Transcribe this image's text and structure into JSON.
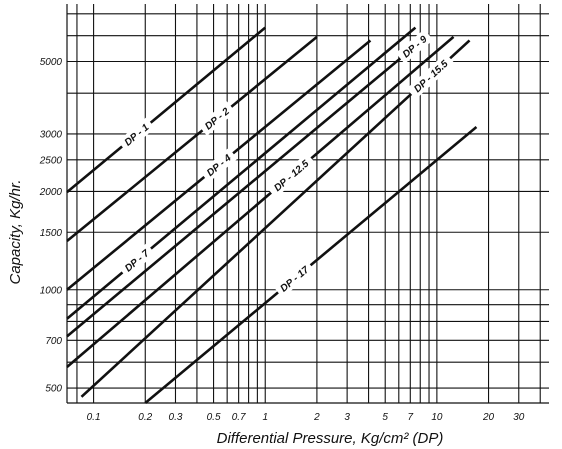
{
  "chart_data": {
    "type": "line",
    "xlabel": "Differential Pressure, Kg/cm² (DP)",
    "ylabel": "Capacity, Kg/hr.",
    "x_scale": "log",
    "y_scale": "log",
    "xlim": [
      0.07,
      45
    ],
    "ylim": [
      450,
      7500
    ],
    "x_ticks": [
      {
        "value": 0.1,
        "label": "0.1"
      },
      {
        "value": 0.2,
        "label": "0.2"
      },
      {
        "value": 0.3,
        "label": "0.3"
      },
      {
        "value": 0.5,
        "label": "0.5"
      },
      {
        "value": 0.7,
        "label": "0.7"
      },
      {
        "value": 1,
        "label": "1"
      },
      {
        "value": 2,
        "label": "2"
      },
      {
        "value": 3,
        "label": "3"
      },
      {
        "value": 5,
        "label": "5"
      },
      {
        "value": 7,
        "label": "7"
      },
      {
        "value": 10,
        "label": "10"
      },
      {
        "value": 20,
        "label": "20"
      },
      {
        "value": 30,
        "label": "30"
      }
    ],
    "y_ticks": [
      {
        "value": 500,
        "label": "500"
      },
      {
        "value": 700,
        "label": "700"
      },
      {
        "value": 1000,
        "label": "1000"
      },
      {
        "value": 1500,
        "label": "1500"
      },
      {
        "value": 2000,
        "label": "2000"
      },
      {
        "value": 2500,
        "label": "2500"
      },
      {
        "value": 3000,
        "label": "3000"
      },
      {
        "value": 5000,
        "label": "5000"
      }
    ],
    "x_gridlines": [
      0.08,
      0.1,
      0.2,
      0.3,
      0.4,
      0.5,
      0.6,
      0.7,
      0.8,
      0.9,
      1,
      2,
      3,
      4,
      5,
      6,
      7,
      8,
      9,
      10,
      20,
      30,
      40
    ],
    "y_gridlines": [
      500,
      600,
      700,
      800,
      900,
      1000,
      1500,
      2000,
      2500,
      3000,
      4000,
      5000,
      6000,
      7000
    ],
    "grid": true,
    "series": [
      {
        "name": "DP - 1",
        "x": [
          0.07,
          1.0
        ],
        "y": [
          1990,
          6350
        ]
      },
      {
        "name": "DP - 2",
        "x": [
          0.07,
          2.0
        ],
        "y": [
          1410,
          5950
        ]
      },
      {
        "name": "DP - 4",
        "x": [
          0.07,
          4.1
        ],
        "y": [
          1000,
          5800
        ]
      },
      {
        "name": "DP - 7",
        "x": [
          0.07,
          7.5
        ],
        "y": [
          815,
          6350
        ]
      },
      {
        "name": "DP - 9",
        "x": [
          0.07,
          9.0
        ],
        "y": [
          720,
          6050
        ]
      },
      {
        "name": "DP - 12.5",
        "x": [
          0.07,
          12.5
        ],
        "y": [
          580,
          5950
        ]
      },
      {
        "name": "DP - 15.5",
        "x": [
          0.085,
          15.5
        ],
        "y": [
          470,
          5800
        ]
      },
      {
        "name": "DP - 17",
        "x": [
          0.2,
          17.0
        ],
        "y": [
          450,
          3150
        ]
      }
    ]
  }
}
